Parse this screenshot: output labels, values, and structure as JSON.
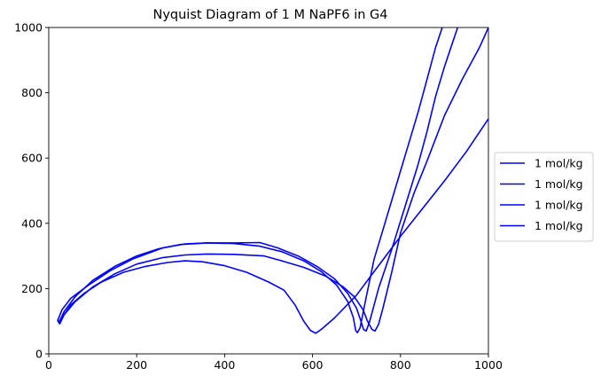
{
  "chart_data": {
    "type": "line",
    "title": "Nyquist Diagram of 1 M NaPF6 in G4",
    "xlabel": "",
    "ylabel": "",
    "xlim": [
      0,
      1000
    ],
    "ylim": [
      0,
      1000
    ],
    "xticks": [
      0,
      200,
      400,
      600,
      800,
      1000
    ],
    "yticks": [
      0,
      200,
      400,
      600,
      800,
      1000
    ],
    "grid": false,
    "legend_position": "right",
    "line_color": "#0000ff",
    "series": [
      {
        "name": "1 mol/kg",
        "points": [
          [
            20,
            105
          ],
          [
            25,
            92
          ],
          [
            30,
            110
          ],
          [
            50,
            150
          ],
          [
            80,
            185
          ],
          [
            120,
            220
          ],
          [
            170,
            250
          ],
          [
            220,
            268
          ],
          [
            270,
            280
          ],
          [
            310,
            285
          ],
          [
            350,
            282
          ],
          [
            400,
            270
          ],
          [
            450,
            250
          ],
          [
            500,
            220
          ],
          [
            535,
            195
          ],
          [
            560,
            150
          ],
          [
            580,
            100
          ],
          [
            595,
            72
          ],
          [
            607,
            63
          ],
          [
            620,
            75
          ],
          [
            650,
            110
          ],
          [
            700,
            180
          ],
          [
            750,
            270
          ],
          [
            800,
            360
          ],
          [
            850,
            445
          ],
          [
            900,
            530
          ],
          [
            950,
            620
          ],
          [
            1000,
            720
          ]
        ]
      },
      {
        "name": "1 mol/kg",
        "points": [
          [
            20,
            105
          ],
          [
            23,
            95
          ],
          [
            35,
            130
          ],
          [
            60,
            175
          ],
          [
            100,
            225
          ],
          [
            150,
            268
          ],
          [
            200,
            300
          ],
          [
            250,
            322
          ],
          [
            300,
            335
          ],
          [
            360,
            340
          ],
          [
            420,
            338
          ],
          [
            480,
            330
          ],
          [
            530,
            313
          ],
          [
            580,
            285
          ],
          [
            620,
            252
          ],
          [
            655,
            210
          ],
          [
            680,
            160
          ],
          [
            693,
            110
          ],
          [
            698,
            72
          ],
          [
            702,
            65
          ],
          [
            708,
            80
          ],
          [
            720,
            160
          ],
          [
            740,
            290
          ],
          [
            760,
            380
          ],
          [
            780,
            470
          ],
          [
            800,
            560
          ],
          [
            820,
            650
          ],
          [
            840,
            740
          ],
          [
            860,
            840
          ],
          [
            880,
            940
          ],
          [
            895,
            1000
          ]
        ]
      },
      {
        "name": "1 mol/kg",
        "points": [
          [
            20,
            100
          ],
          [
            30,
            135
          ],
          [
            50,
            170
          ],
          [
            90,
            210
          ],
          [
            140,
            255
          ],
          [
            190,
            290
          ],
          [
            260,
            325
          ],
          [
            310,
            337
          ],
          [
            360,
            340
          ],
          [
            420,
            340
          ],
          [
            480,
            341
          ],
          [
            520,
            325
          ],
          [
            570,
            298
          ],
          [
            610,
            268
          ],
          [
            650,
            230
          ],
          [
            680,
            185
          ],
          [
            700,
            140
          ],
          [
            710,
            100
          ],
          [
            716,
            75
          ],
          [
            722,
            70
          ],
          [
            730,
            100
          ],
          [
            750,
            200
          ],
          [
            780,
            320
          ],
          [
            810,
            450
          ],
          [
            840,
            580
          ],
          [
            860,
            680
          ],
          [
            880,
            790
          ],
          [
            900,
            880
          ],
          [
            920,
            960
          ],
          [
            930,
            1000
          ]
        ]
      },
      {
        "name": "1 mol/kg",
        "points": [
          [
            25,
            92
          ],
          [
            35,
            120
          ],
          [
            60,
            160
          ],
          [
            100,
            205
          ],
          [
            150,
            245
          ],
          [
            200,
            275
          ],
          [
            260,
            295
          ],
          [
            310,
            303
          ],
          [
            360,
            306
          ],
          [
            420,
            305
          ],
          [
            490,
            300
          ],
          [
            530,
            285
          ],
          [
            580,
            265
          ],
          [
            630,
            238
          ],
          [
            670,
            205
          ],
          [
            695,
            175
          ],
          [
            715,
            135
          ],
          [
            725,
            100
          ],
          [
            735,
            75
          ],
          [
            742,
            70
          ],
          [
            750,
            90
          ],
          [
            760,
            140
          ],
          [
            780,
            250
          ],
          [
            800,
            370
          ],
          [
            830,
            490
          ],
          [
            860,
            590
          ],
          [
            900,
            730
          ],
          [
            940,
            840
          ],
          [
            980,
            940
          ],
          [
            1000,
            1000
          ]
        ]
      }
    ]
  }
}
